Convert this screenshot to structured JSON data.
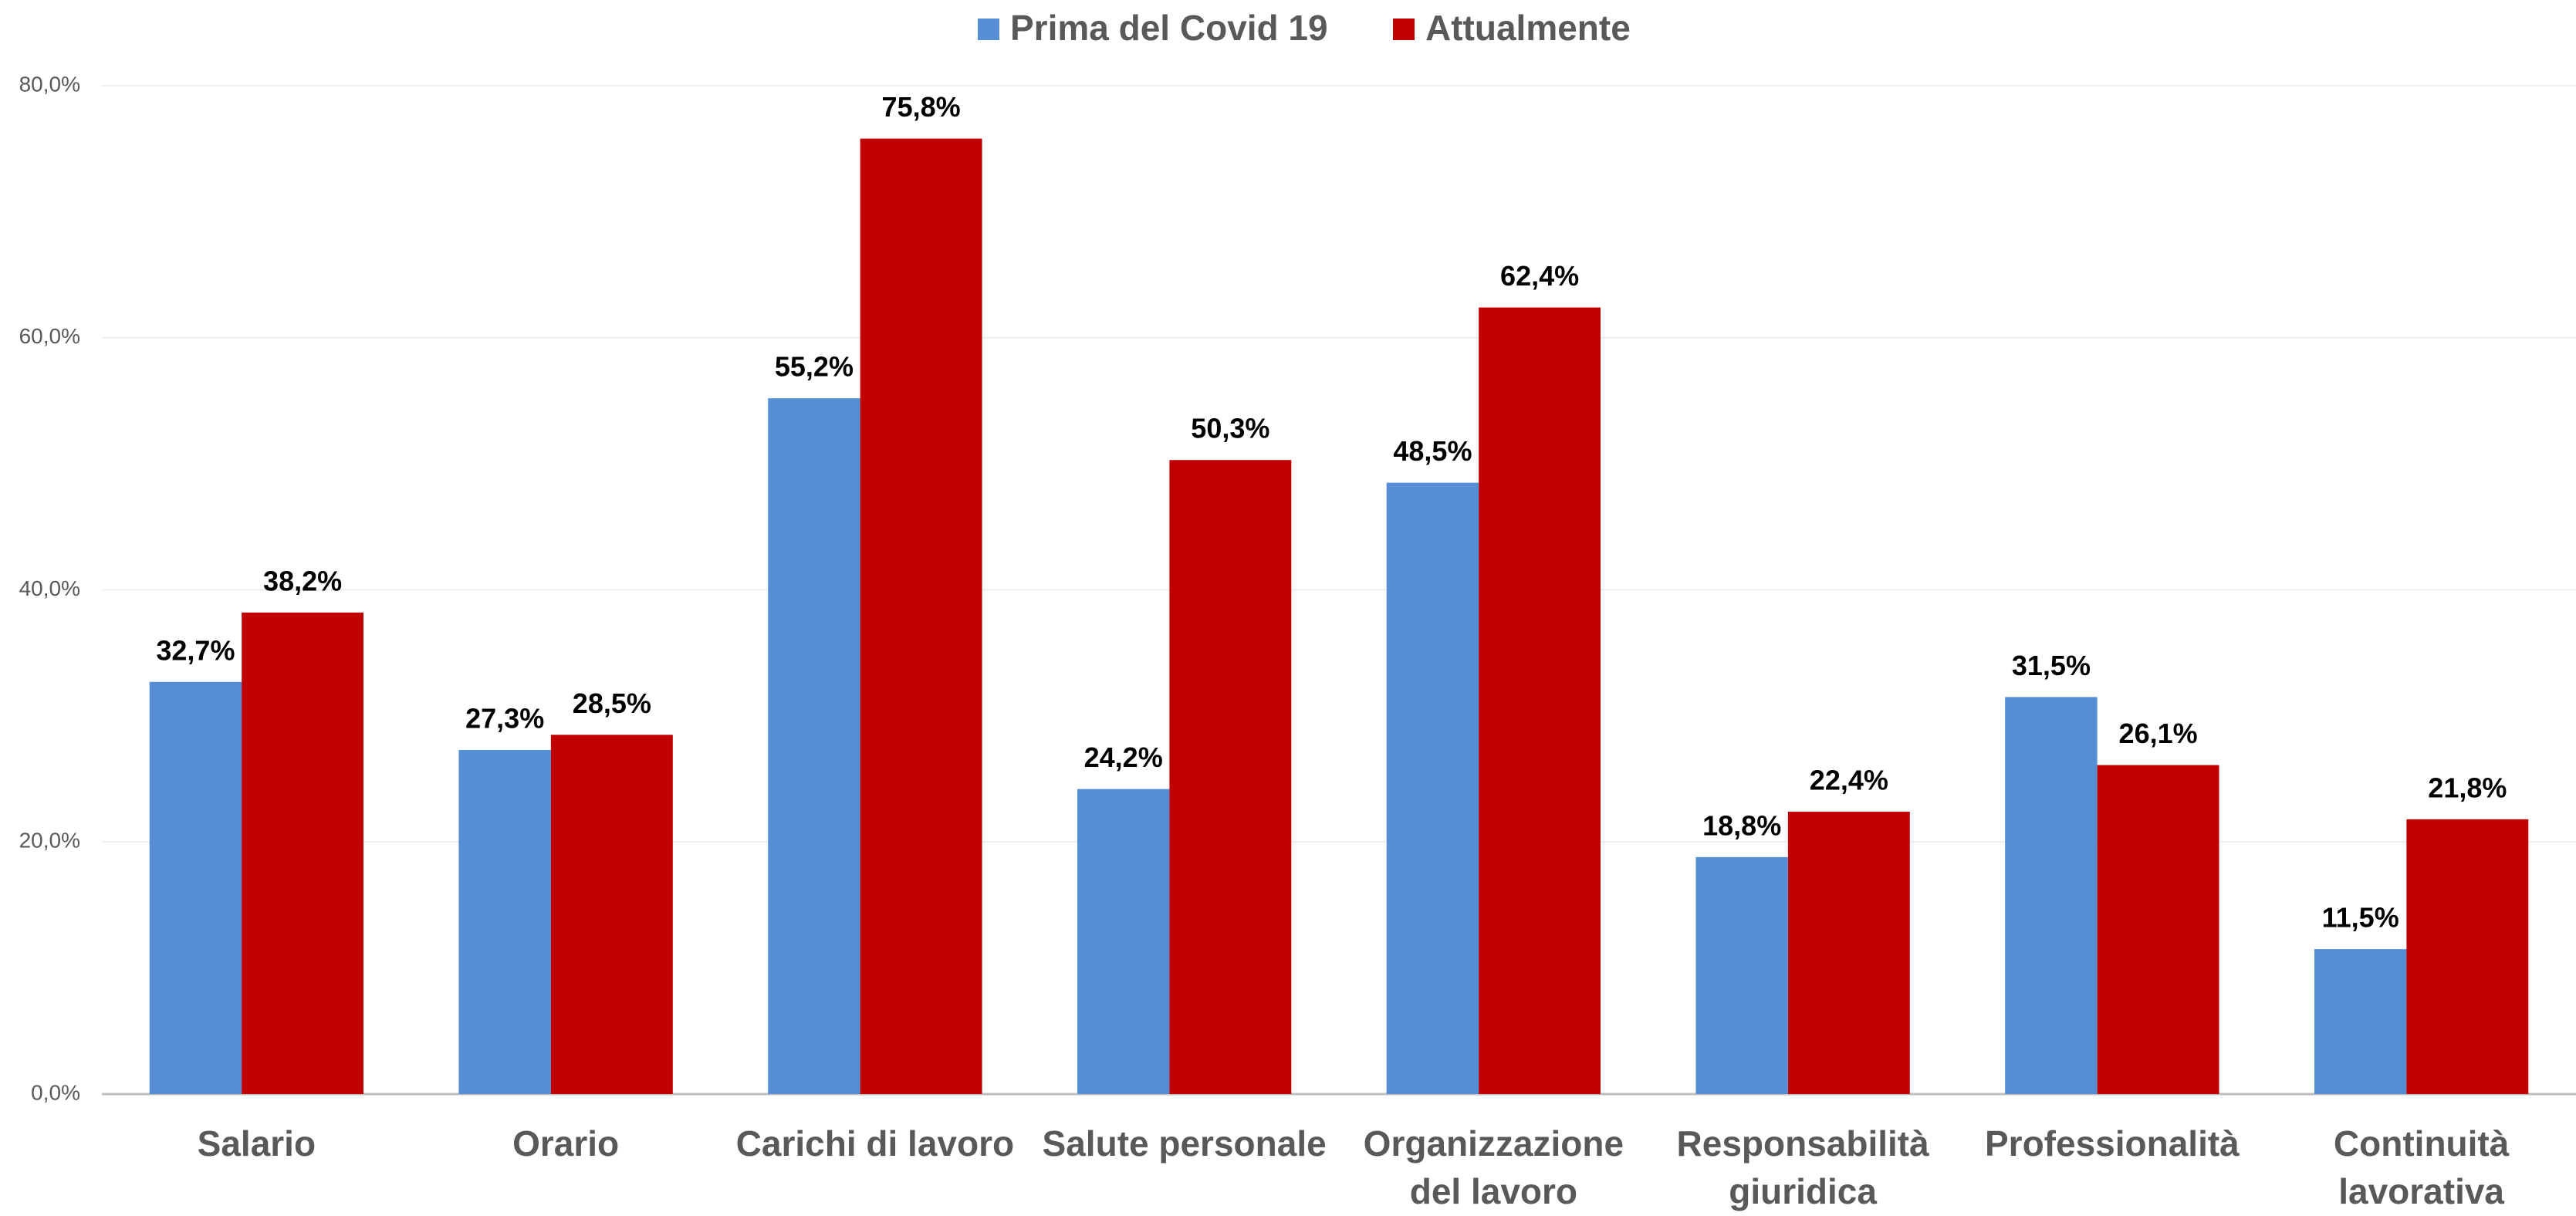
{
  "chart_data": {
    "type": "bar",
    "categories": [
      [
        "Salario"
      ],
      [
        "Orario"
      ],
      [
        "Carichi di lavoro"
      ],
      [
        "Salute personale"
      ],
      [
        "Organizzazione",
        "del lavoro"
      ],
      [
        "Responsabilità",
        "giuridica"
      ],
      [
        "Professionalità"
      ],
      [
        "Continuità",
        "lavorativa"
      ]
    ],
    "series": [
      {
        "name": "Prima del Covid 19",
        "color": "#558ed5",
        "values": [
          32.7,
          27.3,
          55.2,
          24.2,
          48.5,
          18.8,
          31.5,
          11.5
        ],
        "value_labels": [
          "32,7%",
          "27,3%",
          "55,2%",
          "24,2%",
          "48,5%",
          "18,8%",
          "31,5%",
          "11,5%"
        ]
      },
      {
        "name": "Attualmente",
        "color": "#c00000",
        "values": [
          38.2,
          28.5,
          75.8,
          50.3,
          62.4,
          22.4,
          26.1,
          21.8
        ],
        "value_labels": [
          "38,2%",
          "28,5%",
          "75,8%",
          "50,3%",
          "62,4%",
          "22,4%",
          "26,1%",
          "21,8%"
        ]
      }
    ],
    "ylim": [
      0,
      80
    ],
    "yticks": [
      {
        "value": 0,
        "label": "0,0%"
      },
      {
        "value": 20,
        "label": "20,0%"
      },
      {
        "value": 40,
        "label": "40,0%"
      },
      {
        "value": 60,
        "label": "60,0%"
      },
      {
        "value": 80,
        "label": "80,0%"
      }
    ],
    "grid": true,
    "legend": "top"
  }
}
